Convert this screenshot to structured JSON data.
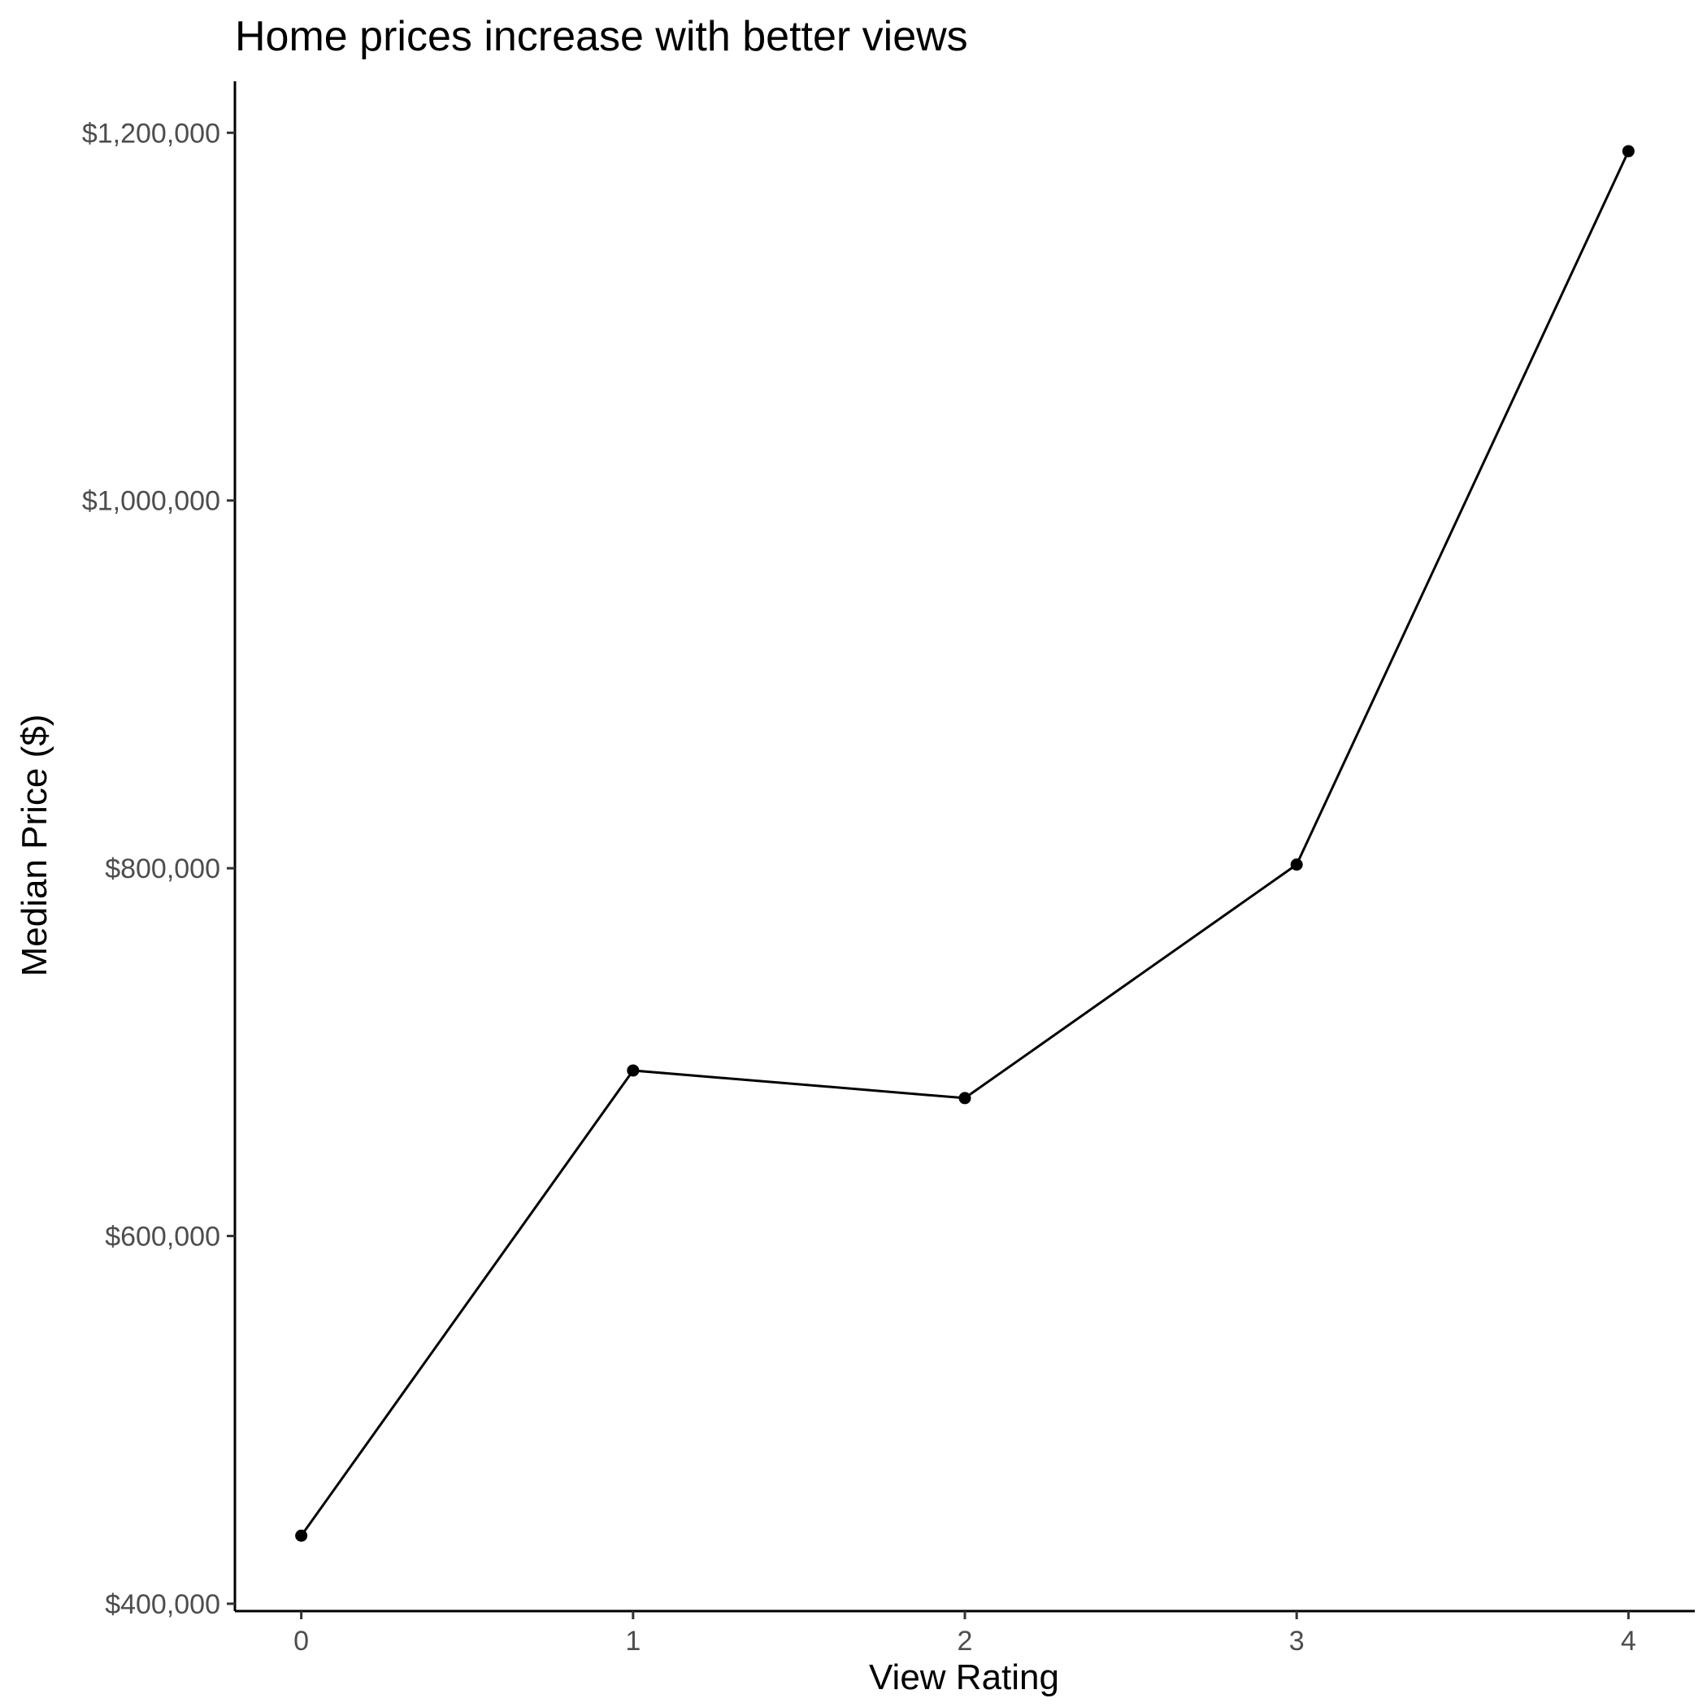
{
  "chart_data": {
    "type": "line",
    "title": "Home prices increase with better views",
    "xlabel": "View Rating",
    "ylabel": "Median Price ($)",
    "x": [
      0,
      1,
      2,
      3,
      4
    ],
    "values": [
      437000,
      690000,
      675000,
      802000,
      1190000
    ],
    "xlim": [
      -0.2,
      4.2
    ],
    "ylim": [
      396000,
      1228000
    ],
    "x_ticks": [
      0,
      1,
      2,
      3,
      4
    ],
    "x_tick_labels": [
      "0",
      "1",
      "2",
      "3",
      "4"
    ],
    "y_ticks": [
      400000,
      600000,
      800000,
      1000000,
      1200000
    ],
    "y_tick_labels": [
      "$400,000",
      "$600,000",
      "$800,000",
      "$1,000,000",
      "$1,200,000"
    ],
    "grid": false,
    "legend": "none",
    "line_color": "#000000",
    "point_color": "#000000"
  }
}
